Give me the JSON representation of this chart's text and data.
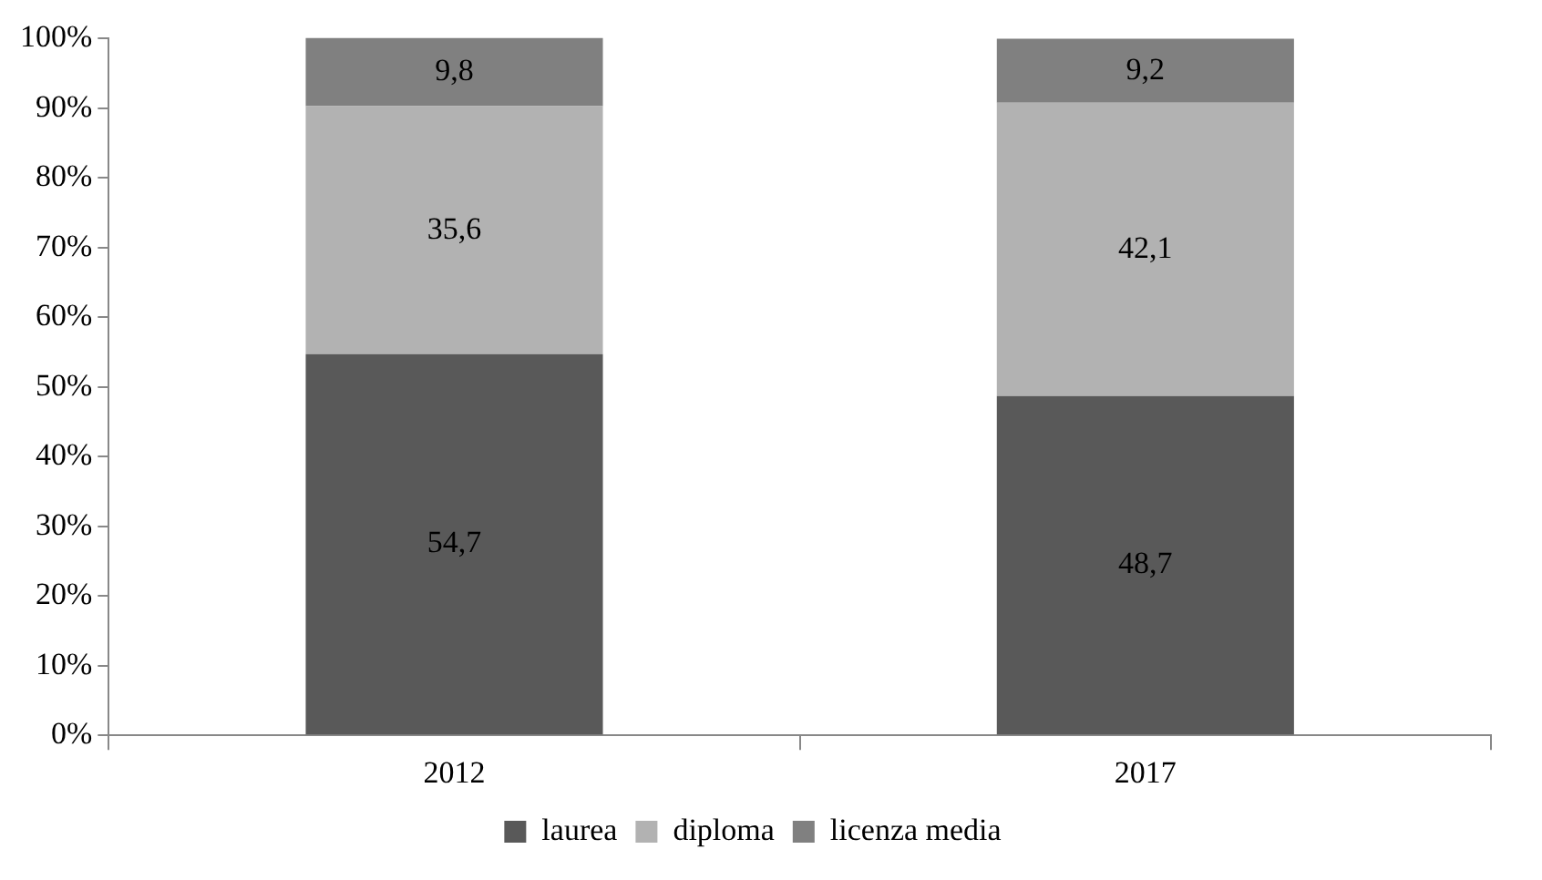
{
  "chart_data": {
    "type": "bar",
    "stacked": true,
    "categories": [
      "2012",
      "2017"
    ],
    "series": [
      {
        "name": "laurea",
        "color": "#595959",
        "values": [
          54.7,
          48.7
        ],
        "value_labels": [
          "54,7",
          "48,7"
        ]
      },
      {
        "name": "diploma",
        "color": "#b2b2b2",
        "values": [
          35.6,
          42.1
        ],
        "value_labels": [
          "35,6",
          "42,1"
        ]
      },
      {
        "name": "licenza media",
        "color": "#808080",
        "values": [
          9.8,
          9.2
        ],
        "value_labels": [
          "9,8",
          "9,2"
        ]
      }
    ],
    "ylim": [
      0,
      100
    ],
    "yticks": [
      {
        "value": 0,
        "label": "0%"
      },
      {
        "value": 10,
        "label": "10%"
      },
      {
        "value": 20,
        "label": "20%"
      },
      {
        "value": 30,
        "label": "30%"
      },
      {
        "value": 40,
        "label": "40%"
      },
      {
        "value": 50,
        "label": "50%"
      },
      {
        "value": 60,
        "label": "60%"
      },
      {
        "value": 70,
        "label": "70%"
      },
      {
        "value": 80,
        "label": "80%"
      },
      {
        "value": 90,
        "label": "90%"
      },
      {
        "value": 100,
        "label": "100%"
      }
    ],
    "grid": false,
    "legend": "bottom"
  }
}
